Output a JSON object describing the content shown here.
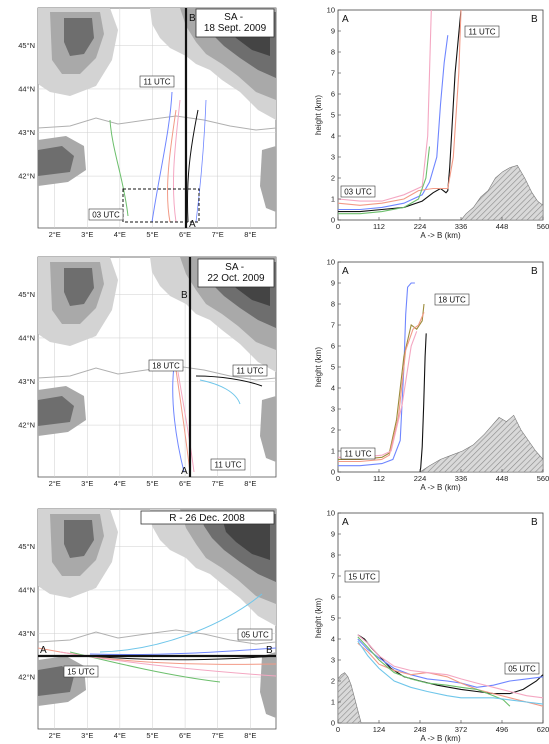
{
  "colors": {
    "terrain_light": "#d3d3d3",
    "terrain_mid": "#a9a9a9",
    "terrain_dark": "#6e6e6e",
    "terrain_darkest": "#444444",
    "sea": "#ffffff",
    "grid": "#cfcfcf",
    "coast": "#b0b0b0",
    "black": "#111111",
    "blue": "#6f86ff",
    "lightblue": "#6fc6ea",
    "salmon": "#f29a86",
    "pink": "#f4a7c2",
    "orange": "#f0a070",
    "green": "#6cbf6c",
    "olive": "#9c8b3a"
  },
  "maps": [
    {
      "label_a": "A",
      "label_b": "B",
      "title": "SA -\n18 Sept. 2009",
      "lat_labels": [
        "45°N",
        "44°N",
        "43°N",
        "42°N"
      ],
      "lon_labels": [
        "2°E",
        "3°E",
        "4°E",
        "5°E",
        "6°E",
        "7°E",
        "8°E"
      ],
      "time_labels": [
        "11 UTC",
        "03 UTC"
      ]
    },
    {
      "label_a": "A",
      "label_b": "B",
      "title": "SA -\n22 Oct. 2009",
      "lat_labels": [
        "45°N",
        "44°N",
        "43°N",
        "42°N"
      ],
      "lon_labels": [
        "2°E",
        "3°E",
        "4°E",
        "5°E",
        "6°E",
        "7°E",
        "8°E"
      ],
      "time_labels": [
        "18 UTC",
        "11 UTC",
        "11 UTC"
      ]
    },
    {
      "label_a": "A",
      "label_b": "B",
      "title": "R - 26 Dec. 2008",
      "lat_labels": [
        "45°N",
        "44°N",
        "43°N",
        "42°N"
      ],
      "lon_labels": [
        "2°E",
        "3°E",
        "4°E",
        "5°E",
        "6°E",
        "7°E",
        "8°E"
      ],
      "time_labels": [
        "05 UTC",
        "15 UTC"
      ]
    }
  ],
  "chart_data": [
    {
      "type": "line",
      "label_a": "A",
      "label_b": "B",
      "xlabel": "A -> B (km)",
      "ylabel": "height (km)",
      "xlim": [
        0,
        560
      ],
      "ylim": [
        0,
        10
      ],
      "xticks": [
        0,
        112,
        224,
        336,
        448,
        560
      ],
      "yticks": [
        0,
        1,
        2,
        3,
        4,
        5,
        6,
        7,
        8,
        9,
        10
      ],
      "annotations": [
        "11 UTC",
        "03 UTC"
      ],
      "terrain": {
        "x": [
          336,
          350,
          370,
          390,
          410,
          430,
          450,
          470,
          490,
          510,
          530,
          545,
          560
        ],
        "y": [
          0,
          0.3,
          0.6,
          1.1,
          1.4,
          2.0,
          2.3,
          2.5,
          2.6,
          2.0,
          1.3,
          0.9,
          0.7
        ]
      },
      "series": [
        {
          "color": "black",
          "x": [
            0,
            60,
            120,
            180,
            230,
            260,
            280,
            295,
            300,
            305,
            320,
            336
          ],
          "y": [
            0.4,
            0.4,
            0.5,
            0.6,
            0.9,
            1.3,
            1.5,
            1.3,
            1.4,
            2.5,
            7,
            10
          ]
        },
        {
          "color": "blue",
          "x": [
            0,
            60,
            120,
            180,
            230,
            250,
            270,
            280,
            290,
            300
          ],
          "y": [
            0.5,
            0.5,
            0.6,
            0.8,
            1.2,
            1.8,
            3,
            5.5,
            7.5,
            8.8
          ]
        },
        {
          "color": "salmon",
          "x": [
            0,
            60,
            120,
            180,
            220,
            260,
            300,
            315,
            330,
            336
          ],
          "y": [
            0.8,
            0.7,
            0.8,
            1.0,
            1.4,
            1.5,
            1.5,
            3,
            7,
            10
          ]
        },
        {
          "color": "pink",
          "x": [
            0,
            60,
            120,
            180,
            230,
            245,
            255
          ],
          "y": [
            1.0,
            0.9,
            0.9,
            1.2,
            1.6,
            4,
            10
          ]
        },
        {
          "color": "green",
          "x": [
            0,
            60,
            120,
            180,
            220,
            240,
            250
          ],
          "y": [
            0.3,
            0.3,
            0.4,
            0.6,
            1.0,
            2.0,
            3.5
          ]
        }
      ]
    },
    {
      "type": "line",
      "label_a": "A",
      "label_b": "B",
      "xlabel": "A -> B (km)",
      "ylabel": "height (km)",
      "xlim": [
        0,
        560
      ],
      "ylim": [
        0,
        10
      ],
      "xticks": [
        0,
        112,
        224,
        336,
        448,
        560
      ],
      "yticks": [
        0,
        1,
        2,
        3,
        4,
        5,
        6,
        7,
        8,
        9,
        10
      ],
      "annotations": [
        "18 UTC",
        "11 UTC"
      ],
      "terrain": {
        "x": [
          224,
          250,
          280,
          310,
          340,
          370,
          400,
          420,
          440,
          460,
          480,
          500,
          520,
          540,
          560
        ],
        "y": [
          0,
          0.3,
          0.6,
          0.8,
          1.0,
          1.3,
          1.8,
          2.2,
          2.6,
          2.4,
          2.7,
          2.0,
          1.5,
          1.0,
          0.6
        ]
      },
      "series": [
        {
          "color": "blue",
          "x": [
            0,
            60,
            120,
            150,
            170,
            180,
            185,
            190,
            200,
            210
          ],
          "y": [
            0.3,
            0.3,
            0.4,
            0.6,
            1.5,
            5,
            7.5,
            8.8,
            9,
            9
          ]
        },
        {
          "color": "olive",
          "x": [
            0,
            60,
            120,
            140,
            160,
            180,
            200,
            215,
            230,
            235
          ],
          "y": [
            0.6,
            0.6,
            0.7,
            0.9,
            2.5,
            5.5,
            7,
            6.8,
            7.2,
            8
          ]
        },
        {
          "color": "salmon",
          "x": [
            0,
            60,
            120,
            140,
            165,
            185,
            205,
            220,
            235
          ],
          "y": [
            0.5,
            0.5,
            0.6,
            0.8,
            2.6,
            5.8,
            6.8,
            7.0,
            7.6
          ]
        },
        {
          "color": "pink",
          "x": [
            0,
            60,
            120,
            145,
            175,
            200,
            215
          ],
          "y": [
            0.7,
            0.7,
            0.8,
            1.0,
            3.2,
            6.0,
            6.7
          ]
        },
        {
          "color": "black",
          "x": [
            224,
            226,
            230,
            234,
            238,
            241
          ],
          "y": [
            0,
            0.2,
            1.2,
            3.2,
            5.5,
            6.6
          ]
        }
      ]
    },
    {
      "type": "line",
      "label_a": "A",
      "label_b": "B",
      "xlabel": "A -> B (km)",
      "ylabel": "height (km)",
      "xlim": [
        0,
        620
      ],
      "ylim": [
        0,
        10
      ],
      "xticks": [
        0,
        124,
        248,
        372,
        496,
        620
      ],
      "yticks": [
        0,
        1,
        2,
        3,
        4,
        5,
        6,
        7,
        8,
        9,
        10
      ],
      "annotations": [
        "15 UTC",
        "05 UTC"
      ],
      "terrain": {
        "x": [
          0,
          10,
          20,
          30,
          40,
          50,
          60,
          70
        ],
        "y": [
          2.1,
          2.3,
          2.4,
          2.2,
          1.8,
          1.2,
          0.6,
          0
        ]
      },
      "series": [
        {
          "color": "black",
          "x": [
            60,
            80,
            100,
            124,
            160,
            200,
            248,
            300,
            372,
            420,
            470,
            520,
            560,
            600,
            620
          ],
          "y": [
            4.2,
            4.0,
            3.6,
            3.2,
            2.6,
            2.2,
            2.0,
            1.8,
            1.6,
            1.5,
            1.4,
            1.4,
            1.6,
            2.0,
            2.3
          ]
        },
        {
          "color": "blue",
          "x": [
            60,
            90,
            124,
            170,
            220,
            270,
            330,
            372,
            420,
            470,
            520,
            570,
            620
          ],
          "y": [
            4.0,
            3.5,
            3.1,
            2.6,
            2.3,
            2.1,
            2.0,
            1.9,
            1.7,
            1.8,
            2.0,
            2.1,
            2.2
          ]
        },
        {
          "color": "salmon",
          "x": [
            60,
            90,
            124,
            170,
            220,
            270,
            330,
            372,
            420,
            470,
            520,
            570,
            620
          ],
          "y": [
            3.8,
            3.4,
            2.8,
            2.5,
            2.3,
            2.4,
            2.2,
            1.9,
            1.6,
            1.4,
            1.2,
            1.0,
            0.8
          ]
        },
        {
          "color": "green",
          "x": [
            60,
            90,
            124,
            170,
            220,
            270,
            330,
            372,
            420,
            470,
            500,
            520
          ],
          "y": [
            4.1,
            3.6,
            3.0,
            2.4,
            2.1,
            1.9,
            1.8,
            1.7,
            1.6,
            1.3,
            1.1,
            0.8
          ]
        },
        {
          "color": "lightblue",
          "x": [
            60,
            90,
            124,
            170,
            220,
            270,
            330,
            372,
            420,
            470,
            520,
            570,
            620
          ],
          "y": [
            3.9,
            3.2,
            2.6,
            2.0,
            1.7,
            1.5,
            1.3,
            1.2,
            1.2,
            1.2,
            1.1,
            1.0,
            0.9
          ]
        },
        {
          "color": "pink",
          "x": [
            60,
            90,
            124,
            170,
            220,
            270,
            330,
            372,
            420,
            470,
            520,
            570,
            620
          ],
          "y": [
            4.2,
            3.8,
            3.2,
            2.7,
            2.5,
            2.4,
            2.3,
            2.1,
            1.9,
            1.7,
            1.5,
            1.3,
            1.2
          ]
        }
      ]
    }
  ]
}
